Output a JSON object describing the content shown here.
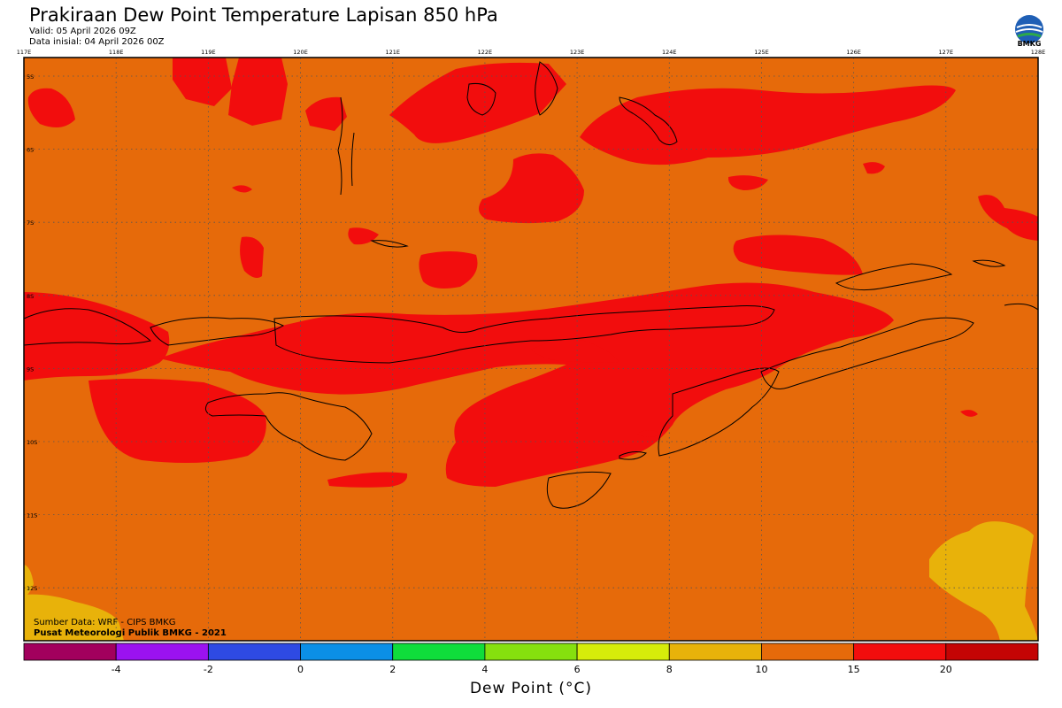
{
  "header": {
    "title": "Prakiraan Dew Point Temperature Lapisan 850 hPa",
    "valid": "Valid: 05 April 2026 09Z",
    "init": "Data inisial: 04 April 2026 00Z"
  },
  "logo": {
    "text": "BMKG",
    "icon": "bmkg-globe-icon"
  },
  "axes": {
    "longitudes": [
      "117E",
      "118E",
      "119E",
      "120E",
      "121E",
      "122E",
      "123E",
      "124E",
      "125E",
      "126E",
      "127E",
      "128E"
    ],
    "latitudes": [
      "5S",
      "6S",
      "7S",
      "8S",
      "9S",
      "10S",
      "11S",
      "12S"
    ]
  },
  "colorbar": {
    "title": "Dew Point (°C)",
    "labels": [
      "-4",
      "-2",
      "0",
      "2",
      "4",
      "6",
      "8",
      "10",
      "15",
      "20"
    ],
    "colors": [
      "#a2005d",
      "#9b12f0",
      "#2e4ae3",
      "#0b8fe6",
      "#0fdd3b",
      "#86e00e",
      "#d6ec0a",
      "#e8b20a",
      "#e66a0a",
      "#f20d0d",
      "#c40404"
    ]
  },
  "footer": {
    "source": "Sumber Data: WRF - CIPS BMKG",
    "publisher": "Pusat Meteorologi Publik BMKG - 2021"
  },
  "map_colors": {
    "base": "#e66a0a",
    "high": "#f20d0d",
    "low": "#e8b20a",
    "coast": "#000000"
  }
}
